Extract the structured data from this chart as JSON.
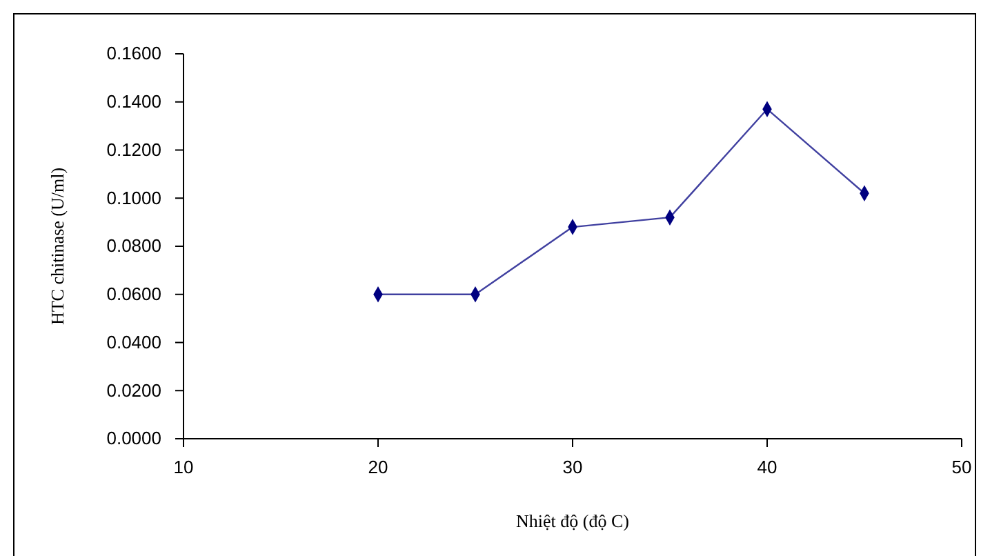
{
  "chart_data": {
    "type": "line",
    "xlabel": "Nhiệt độ (độ C)",
    "ylabel": "HTC chitinase  (U/ml)",
    "x": [
      20,
      25,
      30,
      35,
      40,
      45
    ],
    "series": [
      {
        "color": "#000080",
        "values": [
          0.06,
          0.06,
          0.088,
          0.092,
          0.137,
          0.102
        ]
      }
    ],
    "xlim": [
      10,
      50
    ],
    "xticks": [
      10,
      20,
      30,
      40,
      50
    ],
    "ylim": [
      0,
      0.16
    ],
    "yticks": [
      {
        "value": 0,
        "label": "0.0000"
      },
      {
        "value": 0.02,
        "label": "0.0200"
      },
      {
        "value": 0.04,
        "label": "0.0400"
      },
      {
        "value": 0.06,
        "label": "0.0600"
      },
      {
        "value": 0.08,
        "label": "0.0800"
      },
      {
        "value": 0.1,
        "label": "0.1000"
      },
      {
        "value": 0.12,
        "label": "0.1200"
      },
      {
        "value": 0.14,
        "label": "0.1400"
      },
      {
        "value": 0.16,
        "label": "0.1600"
      }
    ],
    "marker": "diamond",
    "line_style": "solid"
  }
}
